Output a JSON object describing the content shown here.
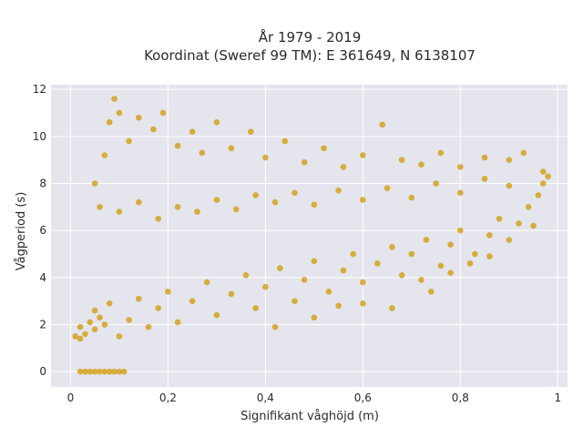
{
  "chart_data": {
    "type": "scatter",
    "title_line1": "År 1979 - 2019",
    "title_line2": "Koordinat (Sweref 99 TM): E 361649, N 6138107",
    "xlabel": "Signifikant våghöjd (m)",
    "ylabel": "Vågperiod (s)",
    "xlim": [
      -0.04,
      1.02
    ],
    "ylim": [
      -0.65,
      12.2
    ],
    "xticks": [
      0,
      0.2,
      0.4,
      0.6,
      0.8,
      1
    ],
    "xtick_labels": [
      "0",
      "0,2",
      "0,4",
      "0,6",
      "0,8",
      "1"
    ],
    "yticks": [
      0,
      2,
      4,
      6,
      8,
      10,
      12
    ],
    "ytick_labels": [
      "0",
      "2",
      "4",
      "6",
      "8",
      "10",
      "12"
    ],
    "grid": true,
    "plot_background": "#E5E5EE",
    "marker_color": "#D4A21C",
    "series": [
      {
        "values": [
          [
            0.02,
            0.0
          ],
          [
            0.03,
            0.0
          ],
          [
            0.04,
            0.0
          ],
          [
            0.05,
            0.0
          ],
          [
            0.06,
            0.0
          ],
          [
            0.07,
            0.0
          ],
          [
            0.08,
            0.0
          ],
          [
            0.09,
            0.0
          ],
          [
            0.1,
            0.0
          ],
          [
            0.11,
            0.0
          ],
          [
            0.01,
            1.5
          ],
          [
            0.02,
            1.4
          ],
          [
            0.02,
            1.9
          ],
          [
            0.03,
            1.6
          ],
          [
            0.04,
            2.1
          ],
          [
            0.05,
            1.8
          ],
          [
            0.05,
            2.6
          ],
          [
            0.06,
            2.3
          ],
          [
            0.07,
            2.0
          ],
          [
            0.08,
            2.9
          ],
          [
            0.1,
            1.5
          ],
          [
            0.12,
            2.2
          ],
          [
            0.14,
            3.1
          ],
          [
            0.16,
            1.9
          ],
          [
            0.18,
            2.7
          ],
          [
            0.2,
            3.4
          ],
          [
            0.22,
            2.1
          ],
          [
            0.25,
            3.0
          ],
          [
            0.28,
            3.8
          ],
          [
            0.3,
            2.4
          ],
          [
            0.33,
            3.3
          ],
          [
            0.36,
            4.1
          ],
          [
            0.38,
            2.7
          ],
          [
            0.4,
            3.6
          ],
          [
            0.43,
            4.4
          ],
          [
            0.46,
            3.0
          ],
          [
            0.48,
            3.9
          ],
          [
            0.5,
            4.7
          ],
          [
            0.53,
            3.4
          ],
          [
            0.56,
            4.3
          ],
          [
            0.58,
            5.0
          ],
          [
            0.6,
            3.8
          ],
          [
            0.63,
            4.6
          ],
          [
            0.66,
            5.3
          ],
          [
            0.68,
            4.1
          ],
          [
            0.7,
            5.0
          ],
          [
            0.73,
            5.6
          ],
          [
            0.76,
            4.5
          ],
          [
            0.78,
            5.4
          ],
          [
            0.8,
            6.0
          ],
          [
            0.83,
            5.0
          ],
          [
            0.86,
            5.8
          ],
          [
            0.88,
            6.5
          ],
          [
            0.9,
            5.6
          ],
          [
            0.92,
            6.3
          ],
          [
            0.94,
            7.0
          ],
          [
            0.95,
            6.2
          ],
          [
            0.96,
            7.5
          ],
          [
            0.97,
            8.0
          ],
          [
            0.98,
            8.3
          ],
          [
            0.05,
            8.0
          ],
          [
            0.07,
            9.2
          ],
          [
            0.08,
            10.6
          ],
          [
            0.09,
            11.6
          ],
          [
            0.1,
            11.0
          ],
          [
            0.12,
            9.8
          ],
          [
            0.14,
            10.8
          ],
          [
            0.17,
            10.3
          ],
          [
            0.19,
            11.0
          ],
          [
            0.22,
            9.6
          ],
          [
            0.25,
            10.2
          ],
          [
            0.27,
            9.3
          ],
          [
            0.3,
            10.6
          ],
          [
            0.33,
            9.5
          ],
          [
            0.37,
            10.2
          ],
          [
            0.4,
            9.1
          ],
          [
            0.44,
            9.8
          ],
          [
            0.48,
            8.9
          ],
          [
            0.52,
            9.5
          ],
          [
            0.56,
            8.7
          ],
          [
            0.6,
            9.2
          ],
          [
            0.64,
            10.5
          ],
          [
            0.68,
            9.0
          ],
          [
            0.72,
            8.8
          ],
          [
            0.76,
            9.3
          ],
          [
            0.8,
            8.7
          ],
          [
            0.85,
            9.1
          ],
          [
            0.9,
            9.0
          ],
          [
            0.93,
            9.3
          ],
          [
            0.97,
            8.5
          ],
          [
            0.06,
            7.0
          ],
          [
            0.1,
            6.8
          ],
          [
            0.14,
            7.2
          ],
          [
            0.18,
            6.5
          ],
          [
            0.22,
            7.0
          ],
          [
            0.26,
            6.8
          ],
          [
            0.3,
            7.3
          ],
          [
            0.34,
            6.9
          ],
          [
            0.38,
            7.5
          ],
          [
            0.42,
            7.2
          ],
          [
            0.46,
            7.6
          ],
          [
            0.5,
            7.1
          ],
          [
            0.55,
            7.7
          ],
          [
            0.6,
            7.3
          ],
          [
            0.65,
            7.8
          ],
          [
            0.7,
            7.4
          ],
          [
            0.75,
            8.0
          ],
          [
            0.8,
            7.6
          ],
          [
            0.85,
            8.2
          ],
          [
            0.9,
            7.9
          ],
          [
            0.42,
            1.9
          ],
          [
            0.5,
            2.3
          ],
          [
            0.55,
            2.8
          ],
          [
            0.6,
            2.9
          ],
          [
            0.66,
            2.7
          ],
          [
            0.74,
            3.4
          ],
          [
            0.72,
            3.9
          ],
          [
            0.78,
            4.2
          ],
          [
            0.82,
            4.6
          ],
          [
            0.86,
            4.9
          ]
        ]
      }
    ]
  }
}
